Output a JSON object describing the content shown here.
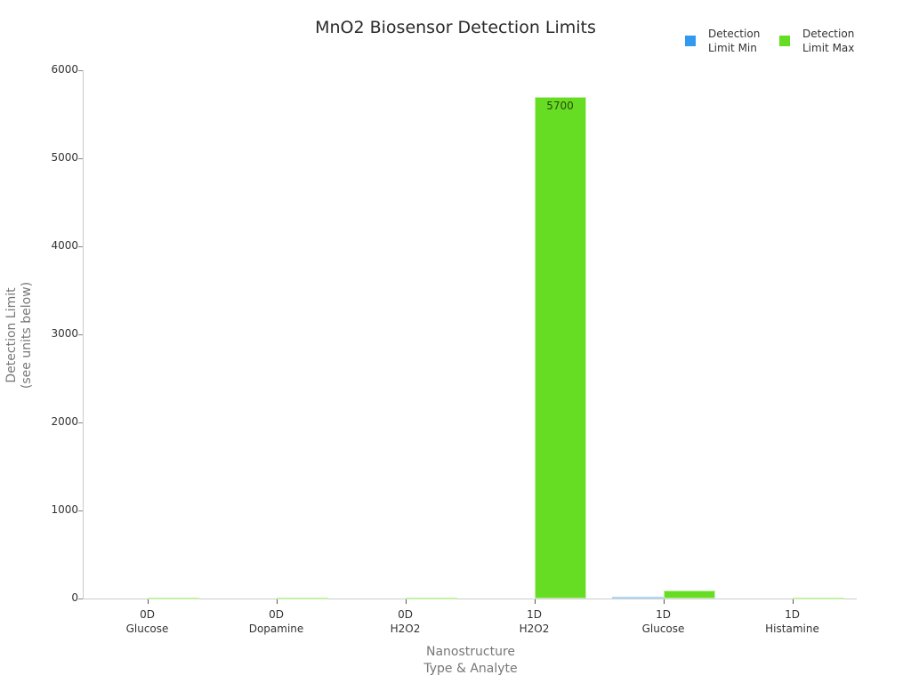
{
  "chart_data": {
    "type": "bar",
    "title": "MnO2 Biosensor Detection Limits",
    "xlabel": "Nanostructure\nType & Analyte",
    "ylabel": "Detection Limit\n(see units below)",
    "ylim": [
      0,
      6000
    ],
    "yticks": [
      0,
      1000,
      2000,
      3000,
      4000,
      5000,
      6000
    ],
    "grid": false,
    "legend_position": "top-right",
    "categories": [
      {
        "line1": "0D",
        "line2": "Glucose"
      },
      {
        "line1": "0D",
        "line2": "Dopamine"
      },
      {
        "line1": "0D",
        "line2": "H2O2"
      },
      {
        "line1": "1D",
        "line2": "H2O2"
      },
      {
        "line1": "1D",
        "line2": "Glucose"
      },
      {
        "line1": "1D",
        "line2": "Histamine"
      }
    ],
    "series": [
      {
        "name": "Detection Limit Min",
        "color": "#3399ee",
        "values": [
          0,
          0,
          0,
          0,
          25,
          0
        ]
      },
      {
        "name": "Detection Limit Max",
        "color": "#66dd22",
        "values": [
          2,
          10,
          2,
          5700,
          95,
          2
        ]
      }
    ],
    "annotations": [
      {
        "category_index": 3,
        "series": "Detection Limit Max",
        "text": "5700"
      }
    ]
  },
  "title": "MnO2 Biosensor Detection Limits",
  "legend": {
    "min": {
      "line1": "Detection",
      "line2": "Limit Min",
      "color": "#3399ee"
    },
    "max": {
      "line1": "Detection",
      "line2": "Limit Max",
      "color": "#66dd22"
    }
  },
  "axes": {
    "y_label_1": "Detection Limit",
    "y_label_2": "(see units below)",
    "x_label_1": "Nanostructure",
    "x_label_2": "Type & Analyte",
    "y_ticks": [
      "0",
      "1000",
      "2000",
      "3000",
      "4000",
      "5000",
      "6000"
    ]
  }
}
